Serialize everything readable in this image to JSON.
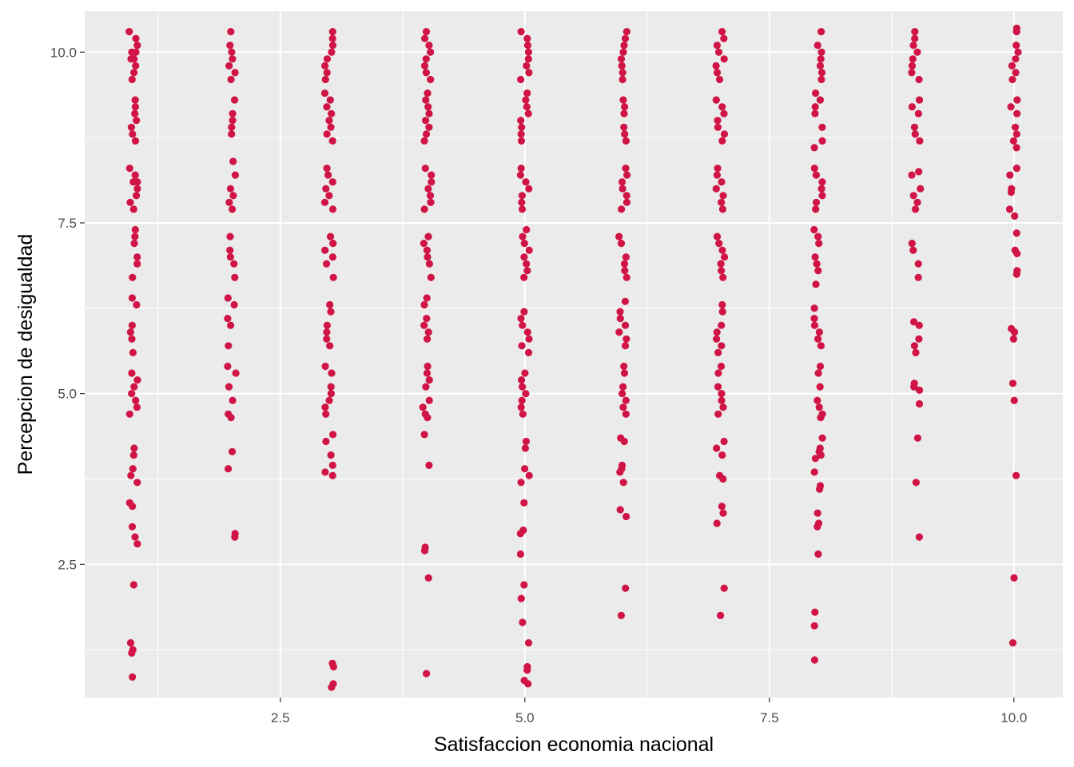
{
  "chart_data": {
    "type": "scatter",
    "title": "",
    "xlabel": "Satisfaccion economia nacional",
    "ylabel": "Percepcion de desigualdad",
    "xlim": [
      0.5,
      10.5
    ],
    "ylim": [
      0.55,
      10.6
    ],
    "xticks": [
      2.5,
      5.0,
      7.5,
      10.0
    ],
    "xtick_labels": [
      "2.5",
      "5.0",
      "7.5",
      "10.0"
    ],
    "yticks": [
      2.5,
      5.0,
      7.5,
      10.0
    ],
    "ytick_labels": [
      "2.5",
      "5.0",
      "7.5",
      "10.0"
    ],
    "grid": true,
    "legend": "none",
    "colors": {
      "points": "#d01446",
      "panel": "#ebebeb",
      "grid": "#ffffff"
    },
    "columns": [
      {
        "x": 1,
        "y": [
          10.3,
          10.1,
          10.0,
          9.9,
          9.8,
          9.7,
          9.6,
          10.2,
          10.0,
          9.9,
          9.3,
          9.1,
          9.0,
          8.9,
          8.8,
          8.7,
          9.2,
          8.3,
          8.2,
          8.1,
          8.0,
          7.9,
          7.8,
          7.7,
          8.1,
          7.4,
          7.3,
          7.2,
          7.0,
          6.9,
          6.7,
          6.4,
          6.3,
          6.0,
          5.9,
          5.8,
          5.6,
          5.3,
          5.2,
          5.1,
          4.9,
          4.8,
          4.7,
          5.0,
          4.2,
          4.1,
          3.9,
          3.8,
          3.7,
          3.4,
          3.35,
          3.05,
          2.9,
          2.8,
          2.2,
          1.35,
          1.25,
          1.2,
          0.85
        ]
      },
      {
        "x": 2,
        "y": [
          10.3,
          10.1,
          10.0,
          9.9,
          9.8,
          9.7,
          9.6,
          9.3,
          9.1,
          9.0,
          8.9,
          8.8,
          8.4,
          8.2,
          8.0,
          7.9,
          7.8,
          7.7,
          7.3,
          7.1,
          7.0,
          6.9,
          6.7,
          6.4,
          6.3,
          6.1,
          6.0,
          5.7,
          5.4,
          5.3,
          5.1,
          4.9,
          4.7,
          4.65,
          4.15,
          3.9,
          2.95,
          2.9
        ]
      },
      {
        "x": 3,
        "y": [
          10.3,
          10.2,
          10.1,
          10.0,
          9.9,
          9.8,
          9.7,
          9.6,
          9.4,
          9.3,
          9.2,
          9.1,
          9.0,
          8.9,
          8.8,
          8.7,
          8.3,
          8.2,
          8.1,
          8.0,
          7.9,
          7.8,
          7.7,
          7.3,
          7.2,
          7.1,
          7.0,
          6.9,
          6.7,
          6.3,
          6.2,
          6.0,
          5.9,
          5.8,
          5.7,
          5.4,
          5.3,
          5.1,
          5.0,
          4.9,
          4.8,
          4.7,
          4.4,
          4.3,
          4.1,
          3.95,
          3.85,
          3.8,
          1.05,
          1.0,
          0.75,
          0.7
        ]
      },
      {
        "x": 4,
        "y": [
          10.3,
          10.2,
          10.1,
          10.0,
          9.9,
          9.8,
          9.7,
          9.6,
          9.4,
          9.3,
          9.2,
          9.1,
          9.0,
          8.9,
          8.8,
          8.7,
          8.3,
          8.2,
          8.1,
          8.0,
          7.9,
          7.8,
          7.7,
          7.3,
          7.2,
          7.1,
          7.0,
          6.9,
          6.7,
          6.4,
          6.3,
          6.1,
          6.0,
          5.9,
          5.8,
          5.4,
          5.3,
          5.2,
          5.1,
          4.9,
          4.8,
          4.7,
          4.65,
          4.4,
          3.95,
          2.75,
          2.7,
          2.3,
          0.9
        ]
      },
      {
        "x": 5,
        "y": [
          10.3,
          10.2,
          10.1,
          10.0,
          9.9,
          9.8,
          9.7,
          9.6,
          9.4,
          9.3,
          9.2,
          9.1,
          9.0,
          8.9,
          8.8,
          8.7,
          8.3,
          8.2,
          8.1,
          8.0,
          7.9,
          7.8,
          7.7,
          7.4,
          7.3,
          7.2,
          7.1,
          7.0,
          6.9,
          6.8,
          6.7,
          6.2,
          6.1,
          6.0,
          5.9,
          5.8,
          5.7,
          5.6,
          5.3,
          5.2,
          5.1,
          5.0,
          4.9,
          4.8,
          4.7,
          4.3,
          4.2,
          3.9,
          3.8,
          3.7,
          3.4,
          3.0,
          2.95,
          2.65,
          2.2,
          2.0,
          1.65,
          1.35,
          1.0,
          0.95,
          0.8,
          0.75
        ]
      },
      {
        "x": 6,
        "y": [
          10.3,
          10.2,
          10.1,
          10.0,
          9.9,
          9.8,
          9.7,
          9.6,
          9.3,
          9.2,
          9.1,
          8.9,
          8.8,
          8.7,
          8.3,
          8.2,
          8.1,
          8.0,
          7.9,
          7.8,
          7.7,
          7.3,
          7.2,
          7.0,
          6.9,
          6.8,
          6.7,
          6.35,
          6.2,
          6.1,
          6.0,
          5.9,
          5.8,
          5.7,
          5.4,
          5.3,
          5.1,
          5.0,
          4.9,
          4.8,
          4.7,
          4.35,
          4.3,
          3.95,
          3.9,
          3.85,
          3.7,
          3.3,
          3.2,
          2.15,
          1.75
        ]
      },
      {
        "x": 7,
        "y": [
          10.3,
          10.2,
          10.1,
          10.0,
          9.9,
          9.8,
          9.7,
          9.6,
          9.3,
          9.2,
          9.1,
          9.0,
          8.9,
          8.8,
          8.7,
          8.3,
          8.2,
          8.1,
          8.0,
          7.9,
          7.8,
          7.7,
          7.3,
          7.2,
          7.1,
          7.0,
          6.9,
          6.8,
          6.7,
          6.3,
          6.2,
          6.0,
          5.9,
          5.8,
          5.7,
          5.6,
          5.4,
          5.3,
          5.1,
          5.0,
          4.9,
          4.8,
          4.7,
          4.3,
          4.2,
          4.1,
          3.8,
          3.75,
          3.35,
          3.25,
          3.1,
          2.15,
          1.75
        ]
      },
      {
        "x": 8,
        "y": [
          10.3,
          10.1,
          10.0,
          9.9,
          9.8,
          9.7,
          9.6,
          9.4,
          9.3,
          9.2,
          9.1,
          8.9,
          8.7,
          8.6,
          8.3,
          8.2,
          8.1,
          8.0,
          7.9,
          7.8,
          7.7,
          7.4,
          7.3,
          7.2,
          7.0,
          6.9,
          6.8,
          6.6,
          6.25,
          6.1,
          6.0,
          5.9,
          5.8,
          5.7,
          5.4,
          5.3,
          5.1,
          4.9,
          4.8,
          4.7,
          4.65,
          4.35,
          4.2,
          4.15,
          4.1,
          4.05,
          3.85,
          3.65,
          3.6,
          3.25,
          3.1,
          3.05,
          2.65,
          1.8,
          1.6,
          1.1
        ]
      },
      {
        "x": 9,
        "y": [
          10.3,
          10.2,
          10.1,
          10.0,
          9.9,
          9.8,
          9.7,
          9.6,
          9.3,
          9.2,
          9.1,
          8.9,
          8.8,
          8.7,
          8.25,
          8.2,
          8.0,
          7.9,
          7.8,
          7.7,
          7.2,
          7.1,
          6.9,
          6.7,
          6.05,
          6.0,
          5.8,
          5.7,
          5.6,
          5.15,
          5.1,
          5.05,
          4.85,
          4.35,
          3.7,
          2.9
        ]
      },
      {
        "x": 10,
        "y": [
          10.35,
          10.3,
          10.1,
          10.0,
          9.9,
          9.8,
          9.7,
          9.6,
          9.3,
          9.2,
          9.1,
          8.9,
          8.8,
          8.7,
          8.6,
          8.3,
          8.2,
          8.0,
          7.95,
          7.7,
          7.6,
          7.35,
          7.1,
          7.05,
          6.8,
          6.75,
          5.95,
          5.9,
          5.8,
          5.15,
          4.9,
          3.8,
          2.3,
          1.35
        ]
      }
    ]
  }
}
